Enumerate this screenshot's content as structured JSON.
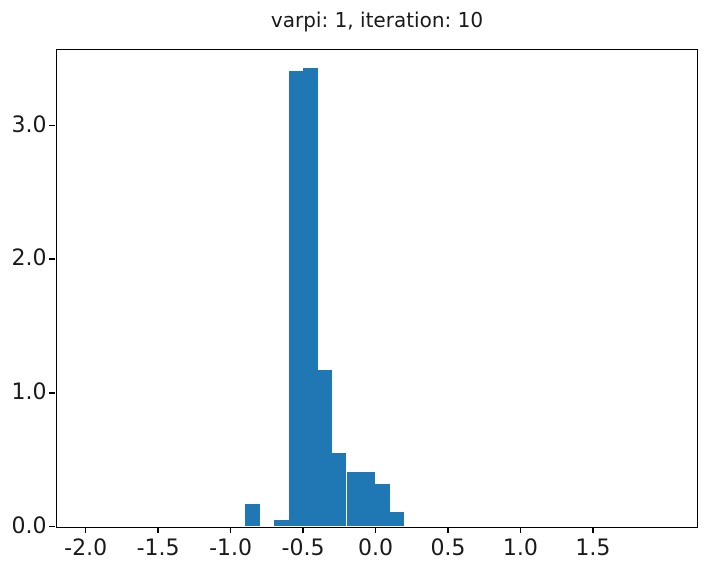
{
  "figure": {
    "background_color": "#ffffff",
    "spine_color": "#000000",
    "text_color": "#1a1a1a"
  },
  "chart_data": {
    "type": "bar",
    "subtype": "histogram",
    "title": "varpi: 1, iteration: 10",
    "xlabel": "",
    "ylabel": "",
    "bar_color": "#1f77b4",
    "bin_edges": [
      -0.9,
      -0.8,
      -0.7,
      -0.6,
      -0.5,
      -0.4,
      -0.3,
      -0.2,
      -0.1,
      0.0,
      0.1,
      0.2
    ],
    "values": [
      0.17,
      0.0,
      0.05,
      3.41,
      3.43,
      1.17,
      0.55,
      0.41,
      0.41,
      0.32,
      0.11
    ],
    "xlim": [
      -2.201,
      2.215
    ],
    "ylim": [
      0,
      3.57
    ],
    "xticks": [
      -2.0,
      -1.5,
      -1.0,
      -0.5,
      0.0,
      0.5,
      1.0,
      1.5
    ],
    "xtick_labels": [
      "-2.0",
      "-1.5",
      "-1.0",
      "-0.5",
      "0.0",
      "0.5",
      "1.0",
      "1.5"
    ],
    "yticks": [
      0.0,
      1.0,
      2.0,
      3.0
    ],
    "ytick_labels": [
      "0.0",
      "1.0",
      "2.0",
      "3.0"
    ],
    "grid": false,
    "legend": null
  }
}
